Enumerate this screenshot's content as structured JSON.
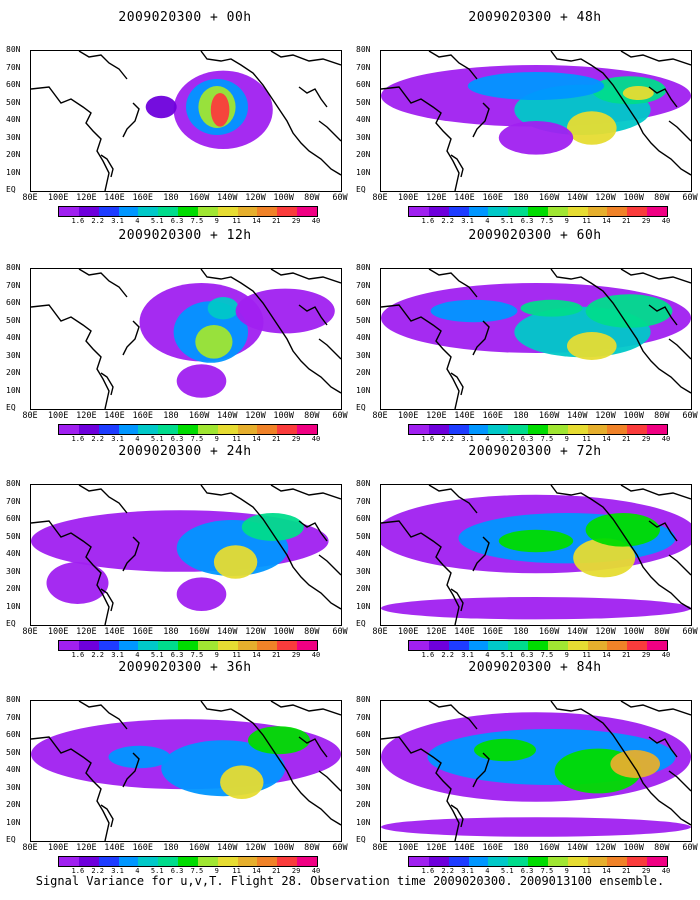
{
  "caption": "Signal Variance for u,v,T. Flight 28. Observation time 2009020300. 2009013100 ensemble.",
  "axes": {
    "y_labels": [
      "80N",
      "70N",
      "60N",
      "50N",
      "40N",
      "30N",
      "20N",
      "10N",
      "EQ"
    ],
    "x_labels": [
      "80E",
      "100E",
      "120E",
      "140E",
      "160E",
      "180",
      "160W",
      "140W",
      "120W",
      "100W",
      "80W",
      "60W"
    ]
  },
  "colorbar": {
    "levels": [
      "1.6",
      "2.2",
      "3.1",
      "4",
      "5.1",
      "6.3",
      "7.5",
      "9",
      "11",
      "14",
      "21",
      "29",
      "40"
    ],
    "colors": [
      "#a020f0",
      "#6e00dc",
      "#1e3cff",
      "#0096ff",
      "#00c8c8",
      "#00dc8c",
      "#00dc00",
      "#a0e632",
      "#e6dc32",
      "#e6af2d",
      "#f08228",
      "#fa3c3c",
      "#f00082"
    ]
  },
  "panels": [
    {
      "title": "2009020300 + 00h"
    },
    {
      "title": "2009020300 + 48h"
    },
    {
      "title": "2009020300 + 12h"
    },
    {
      "title": "2009020300 + 60h"
    },
    {
      "title": "2009020300 + 24h"
    },
    {
      "title": "2009020300 + 72h"
    },
    {
      "title": "2009020300 + 36h"
    },
    {
      "title": "2009020300 + 84h"
    }
  ],
  "chart_data": [
    {
      "type": "heatmap",
      "title": "2009020300 + 00h",
      "forecast_hour": 0,
      "xlim": [
        "80E",
        "60W"
      ],
      "ylim": [
        "EQ",
        "80N"
      ],
      "max_level": "40"
    },
    {
      "type": "heatmap",
      "title": "2009020300 + 48h",
      "forecast_hour": 48,
      "xlim": [
        "80E",
        "60W"
      ],
      "ylim": [
        "EQ",
        "80N"
      ],
      "max_level": "21"
    },
    {
      "type": "heatmap",
      "title": "2009020300 + 12h",
      "forecast_hour": 12,
      "xlim": [
        "80E",
        "60W"
      ],
      "ylim": [
        "EQ",
        "80N"
      ],
      "max_level": "21"
    },
    {
      "type": "heatmap",
      "title": "2009020300 + 60h",
      "forecast_hour": 60,
      "xlim": [
        "80E",
        "60W"
      ],
      "ylim": [
        "EQ",
        "80N"
      ],
      "max_level": "14"
    },
    {
      "type": "heatmap",
      "title": "2009020300 + 24h",
      "forecast_hour": 24,
      "xlim": [
        "80E",
        "60W"
      ],
      "ylim": [
        "EQ",
        "80N"
      ],
      "max_level": "21"
    },
    {
      "type": "heatmap",
      "title": "2009020300 + 72h",
      "forecast_hour": 72,
      "xlim": [
        "80E",
        "60W"
      ],
      "ylim": [
        "EQ",
        "80N"
      ],
      "max_level": "14"
    },
    {
      "type": "heatmap",
      "title": "2009020300 + 36h",
      "forecast_hour": 36,
      "xlim": [
        "80E",
        "60W"
      ],
      "ylim": [
        "EQ",
        "80N"
      ],
      "max_level": "21"
    },
    {
      "type": "heatmap",
      "title": "2009020300 + 84h",
      "forecast_hour": 84,
      "xlim": [
        "80E",
        "60W"
      ],
      "ylim": [
        "EQ",
        "80N"
      ],
      "max_level": "14"
    }
  ]
}
